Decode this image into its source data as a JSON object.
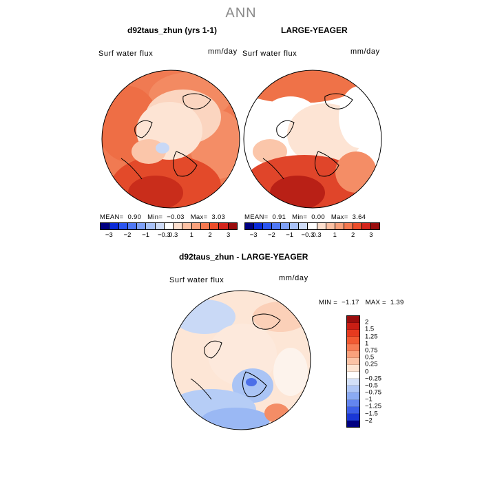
{
  "title": "ANN",
  "units": "mm/day",
  "panels": [
    {
      "title": "d92taus_zhun (yrs 1-1)",
      "var_label": "Surf water flux",
      "units": "mm/day",
      "stats": {
        "mean_label": "MEAN=",
        "mean": "0.90",
        "min_label": "Min=",
        "min": "−0.03",
        "max_label": "Max=",
        "max": "3.03"
      }
    },
    {
      "title": "LARGE-YEAGER",
      "var_label": "Surf water flux",
      "units": "mm/day",
      "stats": {
        "mean_label": "MEAN=",
        "mean": "0.91",
        "min_label": "Min=",
        "min": "0.00",
        "max_label": "Max=",
        "max": "3.64"
      }
    }
  ],
  "colorbar_top": {
    "tick_labels": [
      "−3",
      "−2",
      "−1",
      "−0.3",
      "0.3",
      "1",
      "2",
      "3"
    ],
    "colors": [
      "#000080",
      "#0a2ad8",
      "#2b55f0",
      "#4f78f5",
      "#7ea0f7",
      "#a9c2f8",
      "#cfdcf7",
      "#ffffff",
      "#fde0cf",
      "#fcc1a4",
      "#f9a17c",
      "#f5784f",
      "#ed4d2a",
      "#d4251c",
      "#9a0d0d"
    ]
  },
  "diff_panel": {
    "title": "d92taus_zhun - LARGE-YEAGER",
    "var_label": "Surf water flux",
    "units": "mm/day",
    "stats": {
      "min_label": "MIN =",
      "min": "−1.17",
      "max_label": "MAX =",
      "max": "1.39"
    }
  },
  "colorbar_diff": {
    "tick_labels": [
      "2",
      "1.5",
      "1.25",
      "1",
      "0.75",
      "0.5",
      "0.25",
      "0",
      "−0.25",
      "−0.5",
      "−0.75",
      "−1",
      "−1.25",
      "−1.5",
      "−2"
    ],
    "colors": [
      "#9a0d0d",
      "#c81e14",
      "#e63a1e",
      "#f25a32",
      "#f77d55",
      "#f9a17c",
      "#fbc3a6",
      "#fde4d2",
      "#ffffff",
      "#d3e0f8",
      "#afc6f6",
      "#8aaaf3",
      "#6385ef",
      "#3d5fe8",
      "#1a37d6",
      "#000080"
    ]
  }
}
